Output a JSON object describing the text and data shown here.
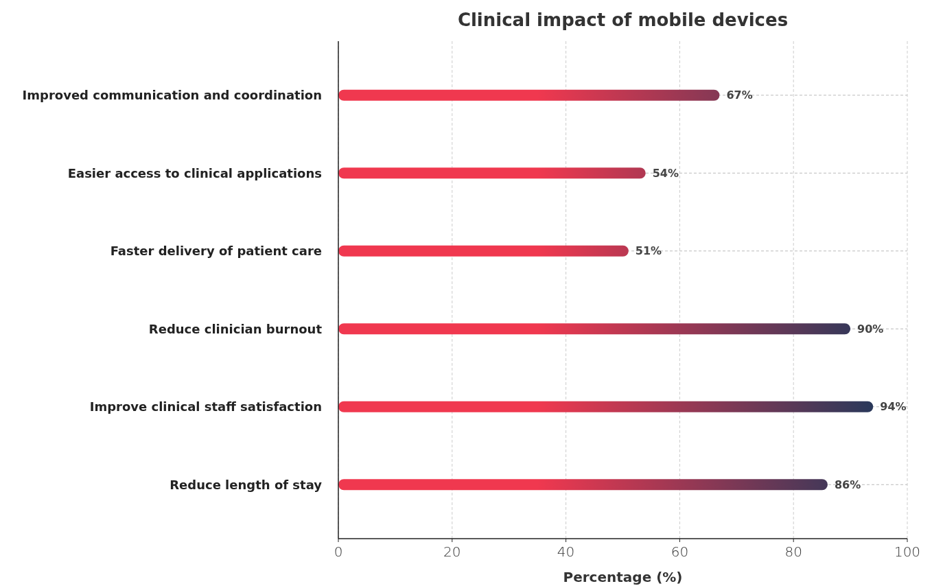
{
  "chart_data": {
    "type": "bar",
    "orientation": "horizontal",
    "title": "Clinical impact of mobile devices",
    "xlabel": "Percentage (%)",
    "categories": [
      "Improved communication and coordination",
      "Easier access to clinical applications",
      "Faster delivery of patient care",
      "Reduce clinician burnout",
      "Improve clinical staff satisfaction",
      "Reduce length of stay"
    ],
    "values": [
      67,
      54,
      51,
      90,
      94,
      86
    ],
    "value_labels": [
      "67%",
      "54%",
      "51%",
      "90%",
      "94%",
      "86%"
    ],
    "color": "#f0384f",
    "xlim": [
      0,
      100
    ],
    "xticks": [
      0,
      20,
      40,
      60,
      80,
      100
    ],
    "grid": true
  }
}
